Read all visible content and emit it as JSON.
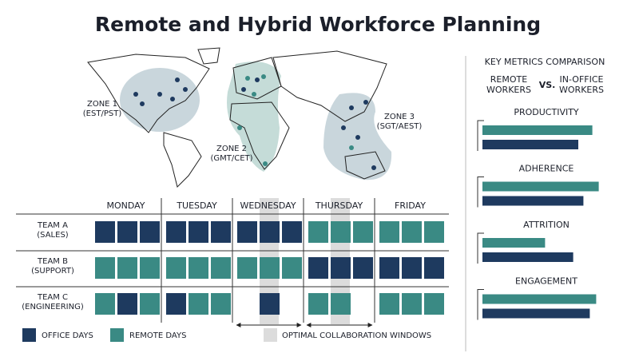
{
  "title": "Remote and Hybrid Workforce Planning",
  "map": {
    "zones": [
      {
        "label": [
          "ZONE 1",
          "(EST/PST)"
        ]
      },
      {
        "label": [
          "ZONE 2",
          "(GMT/CET)"
        ]
      },
      {
        "label": [
          "ZONE 3",
          "(SGT/AEST)"
        ]
      }
    ]
  },
  "schedule": {
    "days": [
      "MONDAY",
      "TUESDAY",
      "WEDNESDAY",
      "THURSDAY",
      "FRIDAY"
    ],
    "office_color": "#1e3a5f",
    "remote_color": "#3a8a84",
    "teams": [
      {
        "label": [
          "TEAM A",
          "(SALES)"
        ],
        "days": [
          [
            "office",
            "office",
            "office"
          ],
          [
            "office",
            "office",
            "office"
          ],
          [
            "office",
            "office",
            "office"
          ],
          [
            "remote",
            "remote",
            "remote"
          ],
          [
            "remote",
            "remote",
            "remote"
          ]
        ]
      },
      {
        "label": [
          "TEAM B",
          "(SUPPORT)"
        ],
        "days": [
          [
            "remote",
            "remote",
            "remote"
          ],
          [
            "remote",
            "remote",
            "remote"
          ],
          [
            "remote",
            "remote",
            "remote"
          ],
          [
            "office",
            "office",
            "office"
          ],
          [
            "office",
            "office",
            "office"
          ]
        ]
      },
      {
        "label": [
          "TEAM C",
          "(ENGINEERING)"
        ],
        "days": [
          [
            "remote",
            "office",
            "remote"
          ],
          [
            "office",
            "remote",
            "remote"
          ],
          [
            null,
            "office",
            null
          ],
          [
            "remote",
            "remote",
            null
          ],
          [
            "remote",
            "remote",
            "remote"
          ]
        ]
      }
    ],
    "collaboration_windows": [
      {
        "day": 2,
        "slot": 1
      },
      {
        "day": 3,
        "slot": 1
      }
    ]
  },
  "legend": {
    "office": "OFFICE DAYS",
    "remote": "REMOTE DAYS",
    "collaboration": "OPTIMAL COLLABORATION WINDOWS"
  },
  "metrics": {
    "title": "KEY METRICS COMPARISON",
    "remote": {
      "label": [
        "REMOTE",
        "WORKERS"
      ],
      "color": "#3a8a84"
    },
    "vs": "VS.",
    "office": {
      "label": [
        "IN-OFFICE",
        "WORKERS"
      ],
      "color": "#1e3a5f"
    },
    "items": [
      {
        "name": "PRODUCTIVITY",
        "remote": 86,
        "office": 75
      },
      {
        "name": "ADHERENCE",
        "remote": 91,
        "office": 79
      },
      {
        "name": "ATTRITION",
        "remote": 49,
        "office": 71
      },
      {
        "name": "ENGAGEMENT",
        "remote": 89,
        "office": 84
      }
    ]
  }
}
